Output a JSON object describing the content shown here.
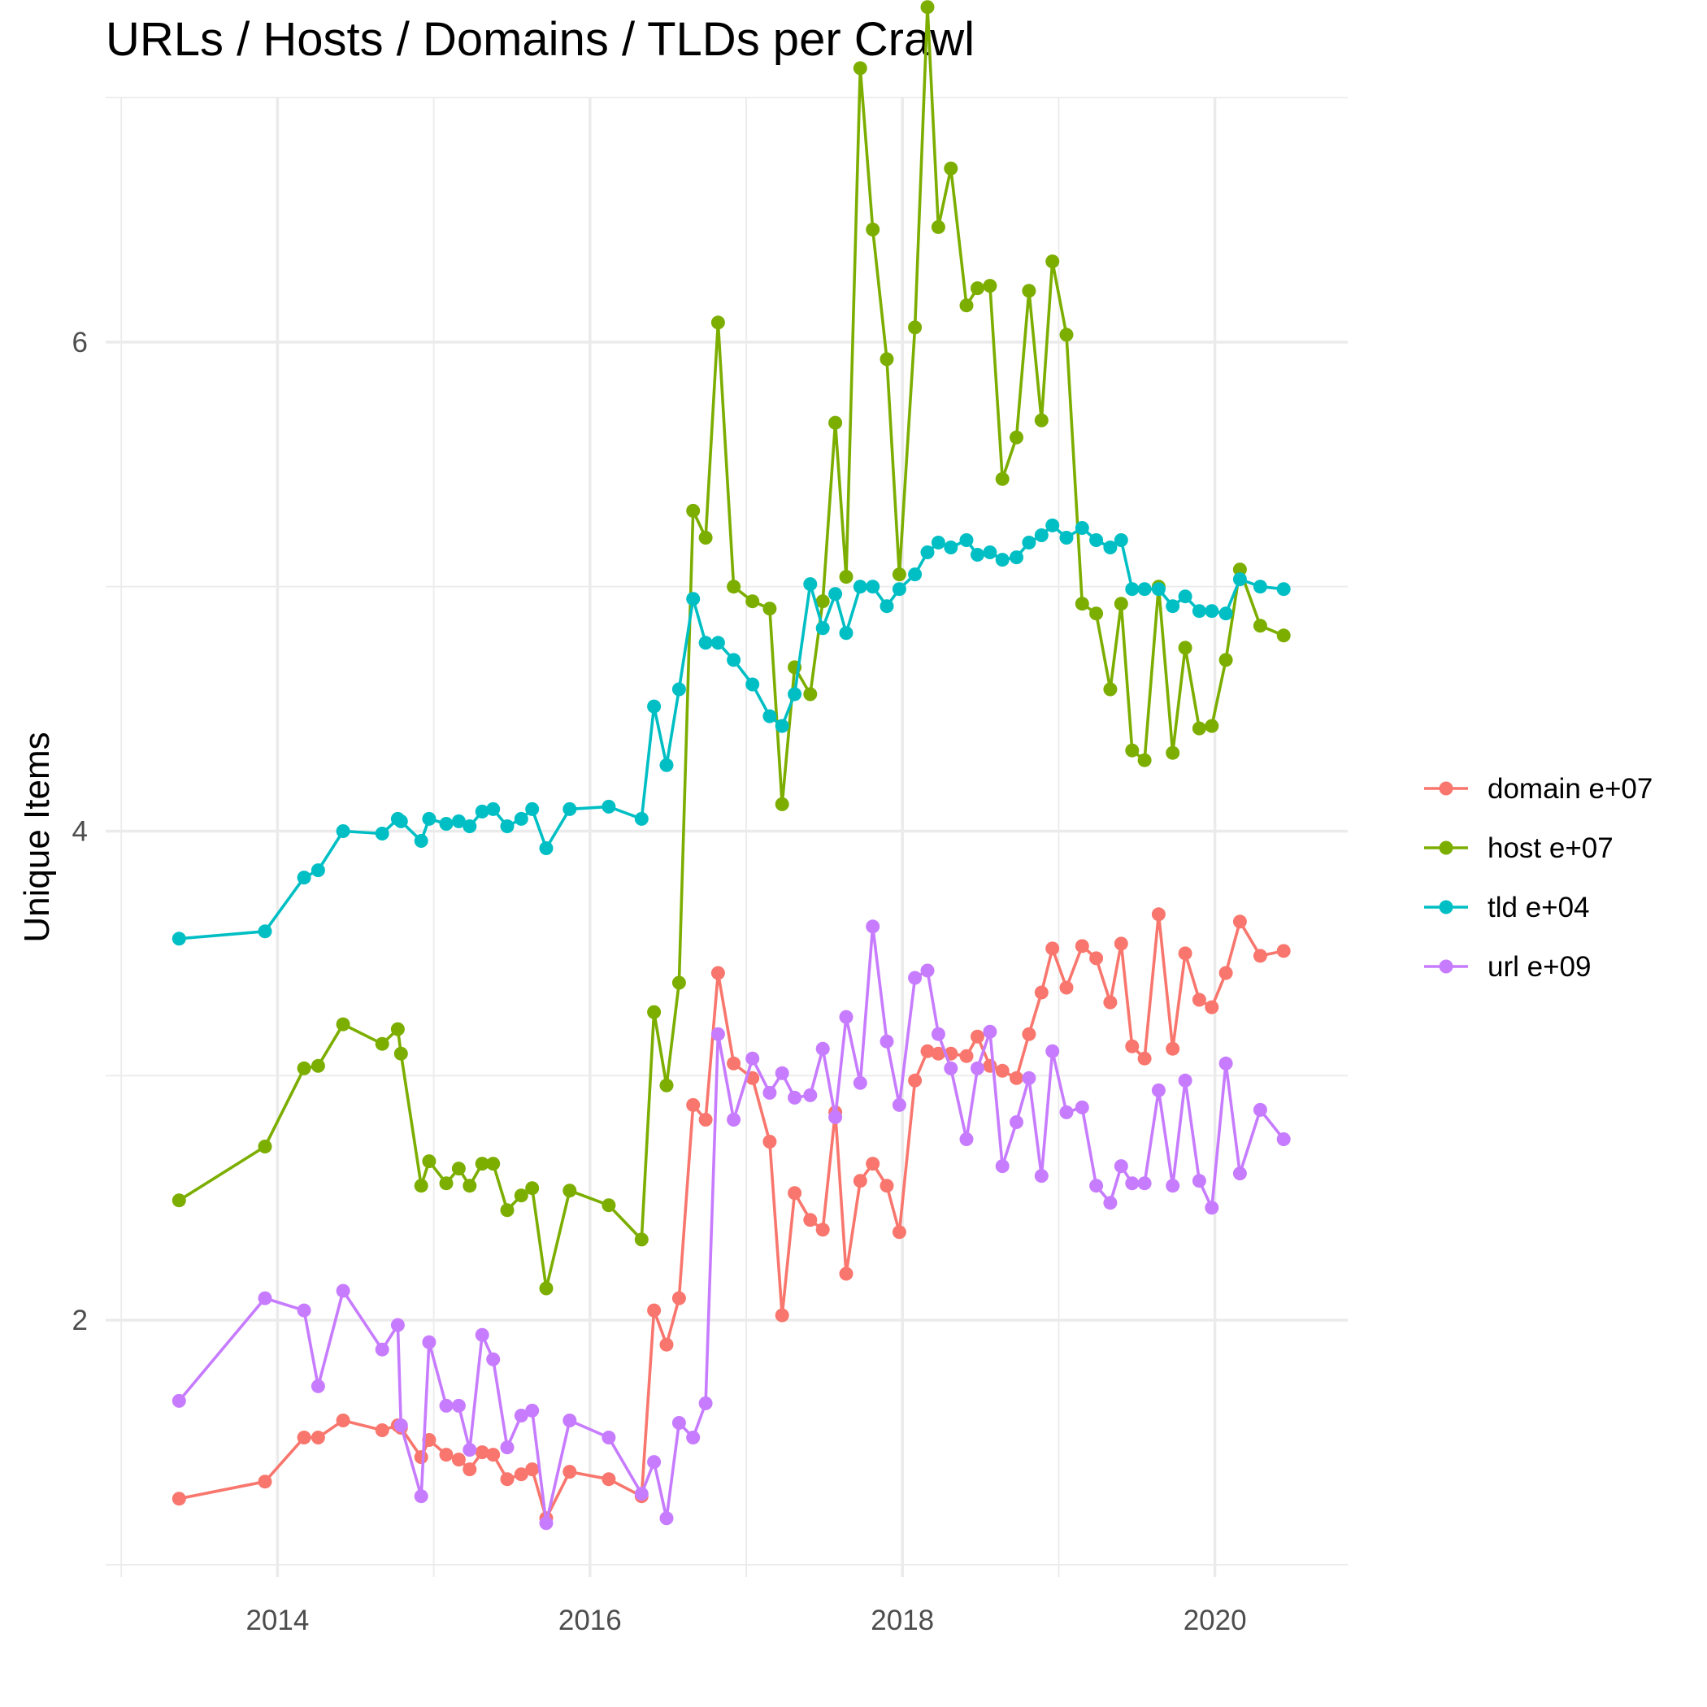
{
  "chart_data": {
    "type": "line",
    "title": "URLs / Hosts / Domains / TLDs per Crawl",
    "xlabel": "",
    "ylabel": "Unique Items",
    "xlim": [
      2012.9,
      2020.85
    ],
    "ylim": [
      0.95,
      7.0
    ],
    "x_ticks": [
      2014,
      2016,
      2018,
      2020
    ],
    "x_tick_labels": [
      "2014",
      "2016",
      "2018",
      "2020"
    ],
    "x_minor": [
      2013,
      2015,
      2017,
      2019
    ],
    "y_ticks": [
      2,
      4,
      6
    ],
    "y_tick_labels": [
      "2",
      "4",
      "6"
    ],
    "y_minor": [
      1,
      3,
      5,
      7
    ],
    "grid": true,
    "legend_position": "right",
    "legend_entries": [
      "domain e+07",
      "host e+07",
      "tld e+04",
      "url e+09"
    ],
    "series": [
      {
        "name": "domain e+07",
        "color": "#F8766D",
        "x": [
          2013.37,
          2013.92,
          2014.17,
          2014.26,
          2014.42,
          2014.67,
          2014.77,
          2014.79,
          2014.92,
          2014.97,
          2015.08,
          2015.16,
          2015.23,
          2015.31,
          2015.38,
          2015.47,
          2015.56,
          2015.63,
          2015.72,
          2015.87,
          2016.12,
          2016.33,
          2016.41,
          2016.49,
          2016.57,
          2016.66,
          2016.74,
          2016.82,
          2016.92,
          2017.04,
          2017.15,
          2017.23,
          2017.31,
          2017.41,
          2017.49,
          2017.57,
          2017.64,
          2017.73,
          2017.81,
          2017.9,
          2017.98,
          2018.08,
          2018.16,
          2018.23,
          2018.31,
          2018.41,
          2018.48,
          2018.56,
          2018.64,
          2018.73,
          2018.81,
          2018.89,
          2018.96,
          2019.05,
          2019.15,
          2019.24,
          2019.33,
          2019.4,
          2019.47,
          2019.55,
          2019.64,
          2019.73,
          2019.81,
          2019.9,
          2019.98,
          2020.07,
          2020.16,
          2020.29,
          2020.44
        ],
        "values": [
          1.27,
          1.34,
          1.52,
          1.52,
          1.59,
          1.55,
          1.57,
          1.56,
          1.44,
          1.51,
          1.45,
          1.43,
          1.39,
          1.46,
          1.45,
          1.35,
          1.37,
          1.39,
          1.19,
          1.38,
          1.35,
          1.28,
          2.04,
          1.9,
          2.09,
          2.88,
          2.82,
          3.42,
          3.05,
          2.99,
          2.73,
          2.02,
          2.52,
          2.41,
          2.37,
          2.85,
          2.19,
          2.57,
          2.64,
          2.55,
          2.36,
          2.98,
          3.1,
          3.09,
          3.09,
          3.08,
          3.16,
          3.04,
          3.02,
          2.99,
          3.17,
          3.34,
          3.52,
          3.36,
          3.53,
          3.48,
          3.3,
          3.54,
          3.12,
          3.07,
          3.66,
          3.11,
          3.5,
          3.31,
          3.28,
          3.42,
          3.63,
          3.49,
          3.51
        ]
      },
      {
        "name": "host e+07",
        "color": "#7CAE00",
        "x": [
          2013.37,
          2013.92,
          2014.17,
          2014.26,
          2014.42,
          2014.67,
          2014.77,
          2014.79,
          2014.92,
          2014.97,
          2015.08,
          2015.16,
          2015.23,
          2015.31,
          2015.38,
          2015.47,
          2015.56,
          2015.63,
          2015.72,
          2015.87,
          2016.12,
          2016.33,
          2016.41,
          2016.49,
          2016.57,
          2016.66,
          2016.74,
          2016.82,
          2016.92,
          2017.04,
          2017.15,
          2017.23,
          2017.31,
          2017.41,
          2017.49,
          2017.57,
          2017.64,
          2017.73,
          2017.81,
          2017.9,
          2017.98,
          2018.08,
          2018.16,
          2018.23,
          2018.31,
          2018.41,
          2018.48,
          2018.56,
          2018.64,
          2018.73,
          2018.81,
          2018.89,
          2018.96,
          2019.05,
          2019.15,
          2019.24,
          2019.33,
          2019.4,
          2019.47,
          2019.55,
          2019.64,
          2019.73,
          2019.81,
          2019.9,
          2019.98,
          2020.07,
          2020.16,
          2020.29,
          2020.44
        ],
        "values": [
          2.49,
          2.71,
          3.03,
          3.04,
          3.21,
          3.13,
          3.19,
          3.09,
          2.55,
          2.65,
          2.56,
          2.62,
          2.55,
          2.64,
          2.64,
          2.45,
          2.51,
          2.54,
          2.13,
          2.53,
          2.47,
          2.33,
          3.26,
          2.96,
          3.38,
          5.31,
          5.2,
          6.08,
          5.0,
          4.94,
          4.91,
          4.11,
          4.67,
          4.56,
          4.94,
          5.67,
          5.04,
          7.12,
          6.46,
          5.93,
          5.05,
          6.06,
          7.37,
          6.47,
          6.71,
          6.15,
          6.22,
          6.23,
          5.44,
          5.61,
          6.21,
          5.68,
          6.33,
          6.03,
          4.93,
          4.89,
          4.58,
          4.93,
          4.33,
          4.29,
          5.0,
          4.32,
          4.75,
          4.42,
          4.43,
          4.7,
          5.07,
          4.84,
          4.8
        ]
      },
      {
        "name": "tld e+04",
        "color": "#00BFC4",
        "x": [
          2013.37,
          2013.92,
          2014.17,
          2014.26,
          2014.42,
          2014.67,
          2014.77,
          2014.79,
          2014.92,
          2014.97,
          2015.08,
          2015.16,
          2015.23,
          2015.31,
          2015.38,
          2015.47,
          2015.56,
          2015.63,
          2015.72,
          2015.87,
          2016.12,
          2016.33,
          2016.41,
          2016.49,
          2016.57,
          2016.66,
          2016.74,
          2016.82,
          2016.92,
          2017.04,
          2017.15,
          2017.23,
          2017.31,
          2017.41,
          2017.49,
          2017.57,
          2017.64,
          2017.73,
          2017.81,
          2017.9,
          2017.98,
          2018.08,
          2018.16,
          2018.23,
          2018.31,
          2018.41,
          2018.48,
          2018.56,
          2018.64,
          2018.73,
          2018.81,
          2018.89,
          2018.96,
          2019.05,
          2019.15,
          2019.24,
          2019.33,
          2019.4,
          2019.47,
          2019.55,
          2019.64,
          2019.73,
          2019.81,
          2019.9,
          2019.98,
          2020.07,
          2020.16,
          2020.29,
          2020.44
        ],
        "values": [
          3.56,
          3.59,
          3.81,
          3.84,
          4.0,
          3.99,
          4.05,
          4.04,
          3.96,
          4.05,
          4.03,
          4.04,
          4.02,
          4.08,
          4.09,
          4.02,
          4.05,
          4.09,
          3.93,
          4.09,
          4.1,
          4.05,
          4.51,
          4.27,
          4.58,
          4.95,
          4.77,
          4.77,
          4.7,
          4.6,
          4.47,
          4.43,
          4.56,
          5.01,
          4.83,
          4.97,
          4.81,
          5.0,
          5.0,
          4.92,
          4.99,
          5.05,
          5.14,
          5.18,
          5.16,
          5.19,
          5.13,
          5.14,
          5.11,
          5.12,
          5.18,
          5.21,
          5.25,
          5.2,
          5.24,
          5.19,
          5.16,
          5.19,
          4.99,
          4.99,
          4.99,
          4.92,
          4.96,
          4.9,
          4.9,
          4.89,
          5.03,
          5.0,
          4.99
        ]
      },
      {
        "name": "url e+09",
        "color": "#C77CFF",
        "x": [
          2013.37,
          2013.92,
          2014.17,
          2014.26,
          2014.42,
          2014.67,
          2014.77,
          2014.79,
          2014.92,
          2014.97,
          2015.08,
          2015.16,
          2015.23,
          2015.31,
          2015.38,
          2015.47,
          2015.56,
          2015.63,
          2015.72,
          2015.87,
          2016.12,
          2016.33,
          2016.41,
          2016.49,
          2016.57,
          2016.66,
          2016.74,
          2016.82,
          2016.92,
          2017.04,
          2017.15,
          2017.23,
          2017.31,
          2017.41,
          2017.49,
          2017.57,
          2017.64,
          2017.73,
          2017.81,
          2017.9,
          2017.98,
          2018.08,
          2018.16,
          2018.23,
          2018.31,
          2018.41,
          2018.48,
          2018.56,
          2018.64,
          2018.73,
          2018.81,
          2018.89,
          2018.96,
          2019.05,
          2019.15,
          2019.24,
          2019.33,
          2019.4,
          2019.47,
          2019.55,
          2019.64,
          2019.73,
          2019.81,
          2019.9,
          2019.98,
          2020.07,
          2020.16,
          2020.29,
          2020.44
        ],
        "values": [
          1.67,
          2.09,
          2.04,
          1.73,
          2.12,
          1.88,
          1.98,
          1.57,
          1.28,
          1.91,
          1.65,
          1.65,
          1.47,
          1.94,
          1.84,
          1.48,
          1.61,
          1.63,
          1.17,
          1.59,
          1.52,
          1.29,
          1.42,
          1.19,
          1.58,
          1.52,
          1.66,
          3.17,
          2.82,
          3.07,
          2.93,
          3.01,
          2.91,
          2.92,
          3.11,
          2.83,
          3.24,
          2.97,
          3.61,
          3.14,
          2.88,
          3.4,
          3.43,
          3.17,
          3.03,
          2.74,
          3.03,
          3.18,
          2.63,
          2.81,
          2.99,
          2.59,
          3.1,
          2.85,
          2.87,
          2.55,
          2.48,
          2.63,
          2.56,
          2.56,
          2.94,
          2.55,
          2.98,
          2.57,
          2.46,
          3.05,
          2.6,
          2.86,
          2.74
        ]
      }
    ]
  }
}
